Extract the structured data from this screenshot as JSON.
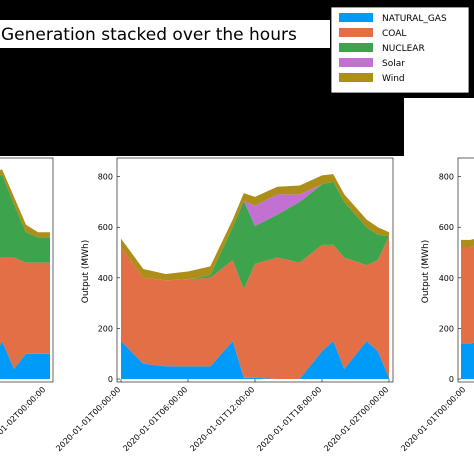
{
  "title": "Generation stacked over the hours",
  "legend": [
    {
      "label": "NATURAL_GAS",
      "color": "#009af9"
    },
    {
      "label": "COAL",
      "color": "#e26f46"
    },
    {
      "label": "NUCLEAR",
      "color": "#3da44d"
    },
    {
      "label": "Solar",
      "color": "#c271d2"
    },
    {
      "label": "Wind",
      "color": "#ac8e18"
    }
  ],
  "chart_data": [
    {
      "type": "area",
      "panel": "center",
      "ylabel": "Output (MWh)",
      "ylim": [
        0,
        850
      ],
      "yticks": [
        "0",
        "200",
        "400",
        "600",
        "800"
      ],
      "xticks": [
        "2020-01-01T00:00:00",
        "2020-01-01T06:00:00",
        "2020-01-01T12:00:00",
        "2020-01-01T18:00:00",
        "2020-01-02T00:00:00"
      ],
      "x": [
        0,
        2,
        4,
        6,
        8,
        10,
        11,
        12,
        14,
        16,
        18,
        19,
        20,
        22,
        23,
        24
      ],
      "series": [
        {
          "name": "NATURAL_GAS",
          "values": [
            150,
            60,
            50,
            50,
            50,
            150,
            5,
            5,
            0,
            0,
            110,
            150,
            40,
            150,
            110,
            5
          ]
        },
        {
          "name": "COAL",
          "values": [
            370,
            340,
            340,
            345,
            350,
            320,
            350,
            450,
            480,
            460,
            420,
            380,
            440,
            300,
            360,
            560
          ]
        },
        {
          "name": "NUCLEAR",
          "values": [
            0,
            0,
            0,
            0,
            10,
            130,
            350,
            150,
            170,
            240,
            240,
            250,
            220,
            150,
            100,
            0
          ]
        },
        {
          "name": "Solar",
          "values": [
            0,
            0,
            0,
            0,
            0,
            0,
            0,
            80,
            80,
            30,
            0,
            0,
            0,
            0,
            0,
            0
          ]
        },
        {
          "name": "Wind",
          "values": [
            35,
            35,
            25,
            30,
            35,
            30,
            30,
            35,
            30,
            35,
            35,
            30,
            30,
            30,
            30,
            15
          ]
        }
      ]
    },
    {
      "type": "area",
      "panel": "left (partially visible)",
      "xticks": [
        "2020-01-02T00:00:00"
      ],
      "x": [
        0,
        0.5,
        1,
        1.5,
        2,
        2.5
      ],
      "series": [
        {
          "name": "NATURAL_GAS",
          "values": [
            40,
            150,
            40,
            100,
            100,
            100
          ]
        },
        {
          "name": "COAL",
          "values": [
            430,
            330,
            440,
            360,
            360,
            360
          ]
        },
        {
          "name": "NUCLEAR",
          "values": [
            300,
            330,
            210,
            120,
            100,
            100
          ]
        },
        {
          "name": "Solar",
          "values": [
            0,
            0,
            0,
            0,
            0,
            0
          ]
        },
        {
          "name": "Wind",
          "values": [
            30,
            20,
            30,
            30,
            20,
            20
          ]
        }
      ]
    },
    {
      "type": "area",
      "panel": "right (partially visible)",
      "ylabel": "Output (MWh)",
      "yticks": [
        "0",
        "200",
        "400",
        "600",
        "800"
      ],
      "xticks": [
        "2020-01-01T00:00:00"
      ],
      "x": [
        0,
        0.5,
        1
      ],
      "series": [
        {
          "name": "NATURAL_GAS",
          "values": [
            140,
            140,
            150
          ]
        },
        {
          "name": "COAL",
          "values": [
            380,
            380,
            380
          ]
        },
        {
          "name": "NUCLEAR",
          "values": [
            0,
            0,
            0
          ]
        },
        {
          "name": "Solar",
          "values": [
            0,
            0,
            0
          ]
        },
        {
          "name": "Wind",
          "values": [
            30,
            30,
            30
          ]
        }
      ]
    }
  ]
}
